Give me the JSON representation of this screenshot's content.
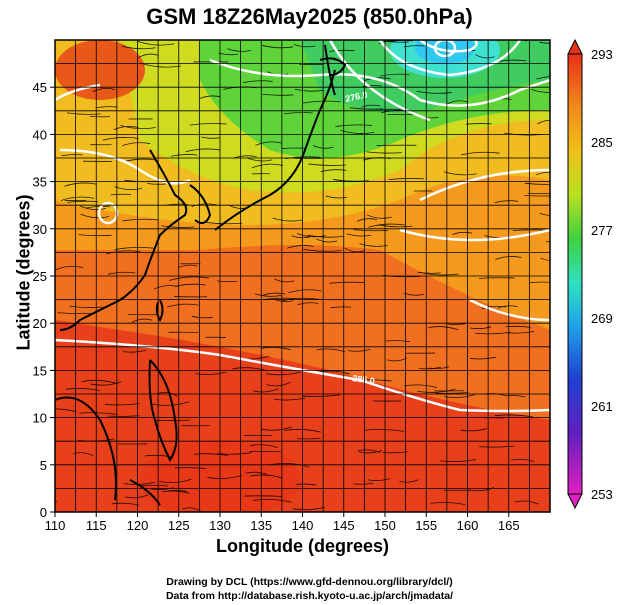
{
  "title": "GSM 18Z26May2025 (850.0hPa)",
  "x_axis": {
    "label": "Longitude (degrees)",
    "ticks": [
      "110",
      "115",
      "120",
      "125",
      "130",
      "135",
      "140",
      "145",
      "150",
      "155",
      "160",
      "165"
    ],
    "range": [
      110,
      170
    ]
  },
  "y_axis": {
    "label": "Latitude  (degrees)",
    "ticks": [
      "0",
      "5",
      "10",
      "15",
      "20",
      "25",
      "30",
      "35",
      "40",
      "45"
    ],
    "range": [
      0,
      50
    ]
  },
  "colorbar": {
    "labels": [
      "293",
      "285",
      "277",
      "269",
      "261",
      "253"
    ],
    "min": 253,
    "max": 293
  },
  "contour_labels": [
    "285.0",
    "276.0"
  ],
  "credits": {
    "line1": "Drawing by DCL (https://www.gfd-dennou.org/library/dcl/)",
    "line2": "Data from http://database.rish.kyoto-u.ac.jp/arch/jmadata/"
  },
  "colors": {
    "warm": "#e8401a",
    "orange": "#f59a1c",
    "yellow": "#e6d81a",
    "green": "#5fd43a",
    "cyan": "#3ee0d8",
    "blue": "#1e3cc8",
    "magenta": "#e020c0"
  }
}
